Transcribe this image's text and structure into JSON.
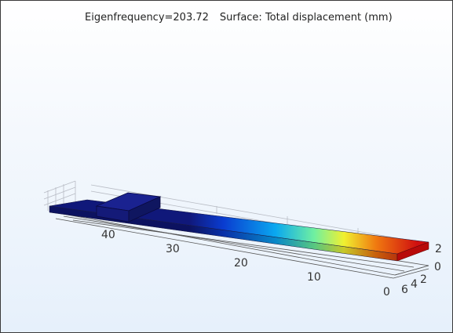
{
  "plot": {
    "eigenfrequency": "Eigenfrequency=203.72",
    "surface": "Surface: Total displacement (mm)"
  },
  "axes": {
    "x_ticks": [
      "40",
      "30",
      "20",
      "10",
      "0"
    ],
    "y_ticks": [
      "6",
      "4",
      "2",
      "0"
    ],
    "z_ticks": [
      "2",
      "0"
    ]
  },
  "colors": {
    "background_top": "#ffffff",
    "background_bottom": "#e6f0fb",
    "colormap": [
      "#10187a",
      "#0a3cd0",
      "#0aa8f0",
      "#70f0a0",
      "#f0f030",
      "#f07a10",
      "#d01010"
    ]
  }
}
